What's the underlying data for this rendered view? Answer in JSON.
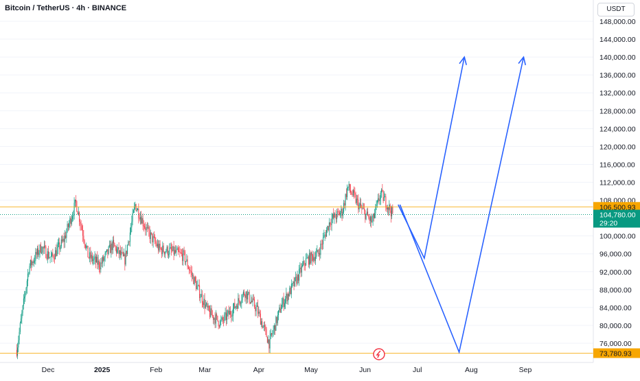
{
  "header": {
    "title": "Bitcoin / TetherUS · 4h · BINANCE"
  },
  "price_axis": {
    "currency": "USDT",
    "ticks": [
      "148,000.00",
      "144,000.00",
      "140,000.00",
      "136,000.00",
      "132,000.00",
      "128,000.00",
      "124,000.00",
      "120,000.00",
      "116,000.00",
      "112,000.00",
      "108,000.00",
      "104,000.00",
      "100,000.00",
      "96,000.00",
      "92,000.00",
      "88,000.00",
      "84,000.00",
      "80,000.00",
      "76,000.00"
    ]
  },
  "time_axis": {
    "ticks": [
      "Dec",
      "2025",
      "Feb",
      "Mar",
      "Apr",
      "May",
      "Jun",
      "Jul",
      "Aug",
      "Sep"
    ]
  },
  "chart_data": {
    "type": "candlestick",
    "symbol": "Bitcoin / TetherUS",
    "interval": "4h",
    "exchange": "BINANCE",
    "ylim": [
      72000,
      150000
    ],
    "horizontal_levels": [
      {
        "price": 106500.93,
        "label": "106,500.93",
        "color": "#f7a600"
      },
      {
        "price": 73780.93,
        "label": "73,780.93",
        "color": "#f7a600"
      }
    ],
    "current_price": {
      "price": 104780.0,
      "label": "104,780.00",
      "countdown": "29:20",
      "color": "#089981"
    },
    "price_path_approx": [
      [
        "Nov 13",
        74500
      ],
      [
        "Nov 20",
        93000
      ],
      [
        "Nov 27",
        97500
      ],
      [
        "Dec 3",
        95000
      ],
      [
        "Dec 10",
        99000
      ],
      [
        "Dec 17",
        107500
      ],
      [
        "Dec 24",
        95500
      ],
      [
        "Dec 31",
        93500
      ],
      [
        "Jan 7",
        98000
      ],
      [
        "Jan 14",
        94500
      ],
      [
        "Jan 20",
        107000
      ],
      [
        "Jan 27",
        101000
      ],
      [
        "Feb 3",
        97000
      ],
      [
        "Feb 10",
        96500
      ],
      [
        "Feb 17",
        95500
      ],
      [
        "Feb 24",
        89000
      ],
      [
        "Mar 3",
        83000
      ],
      [
        "Mar 10",
        80500
      ],
      [
        "Mar 17",
        83500
      ],
      [
        "Mar 24",
        87500
      ],
      [
        "Mar 31",
        83500
      ],
      [
        "Apr 7",
        76000
      ],
      [
        "Apr 14",
        84500
      ],
      [
        "Apr 21",
        89000
      ],
      [
        "Apr 28",
        94500
      ],
      [
        "May 5",
        96000
      ],
      [
        "May 12",
        103500
      ],
      [
        "May 19",
        105500
      ],
      [
        "May 22",
        111000
      ],
      [
        "May 29",
        106500
      ],
      [
        "Jun 5",
        103000
      ],
      [
        "Jun 10",
        109500
      ],
      [
        "Jun 17",
        104800
      ]
    ],
    "projections": [
      {
        "name": "",
        "color": "#2962ff",
        "path": [
          [
            "Jun 20",
            107000
          ],
          [
            "Jul 5",
            95000
          ],
          [
            "Jul 28",
            140000
          ]
        ]
      },
      {
        "name": "",
        "color": "#2962ff",
        "path": [
          [
            "Jun 21",
            107000
          ],
          [
            "Jul 25",
            74000
          ],
          [
            "Aug 31",
            140000
          ]
        ]
      }
    ]
  },
  "badge": {
    "icon": "flash-icon",
    "color": "#f23645"
  },
  "colors": {
    "up": "#089981",
    "down": "#f23645",
    "projection": "#2962ff",
    "level": "#f7a600"
  }
}
